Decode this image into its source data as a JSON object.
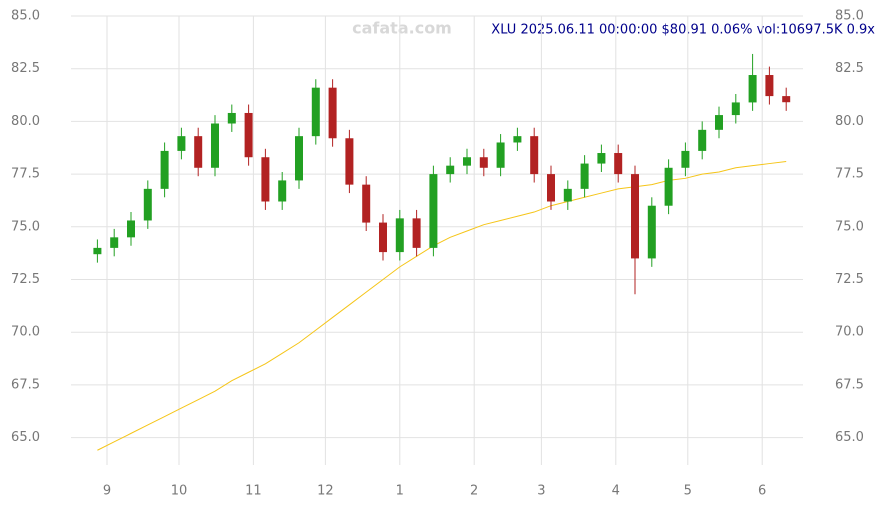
{
  "chart_data": {
    "type": "candlestick",
    "title": "XLU 2025.06.11 00:00:00 $80.91 0.06% vol:10697.5K 0.9x",
    "watermark": "cafata.com",
    "x": [
      -4,
      3,
      10,
      17,
      24,
      31,
      38,
      45,
      52,
      59,
      66,
      73,
      80,
      87,
      94,
      101,
      108,
      115,
      122,
      129,
      136,
      143,
      150,
      157,
      164,
      171,
      178,
      185,
      192,
      199,
      206,
      213,
      220,
      227,
      234,
      241,
      248,
      255,
      262,
      269,
      276,
      283
    ],
    "open": [
      73.7,
      74.0,
      74.5,
      75.3,
      76.8,
      78.6,
      79.3,
      77.8,
      79.9,
      80.4,
      78.3,
      76.2,
      77.2,
      79.3,
      81.6,
      79.2,
      77.0,
      75.2,
      73.8,
      75.4,
      74.0,
      77.5,
      77.9,
      78.3,
      77.8,
      79.0,
      79.3,
      77.5,
      76.2,
      76.8,
      78.0,
      78.5,
      77.5,
      73.5,
      76.0,
      77.8,
      78.6,
      79.6,
      80.3,
      80.9,
      82.2,
      81.2
    ],
    "high": [
      74.4,
      74.9,
      75.7,
      77.2,
      79.0,
      79.7,
      79.7,
      80.3,
      80.8,
      80.8,
      78.7,
      77.6,
      79.7,
      82.0,
      82.0,
      79.6,
      77.4,
      75.6,
      75.8,
      75.8,
      77.9,
      78.3,
      78.7,
      78.7,
      79.4,
      79.7,
      79.7,
      77.9,
      77.2,
      78.4,
      78.9,
      78.9,
      77.9,
      76.4,
      78.2,
      79.0,
      80.0,
      80.7,
      81.3,
      83.2,
      82.6,
      81.6
    ],
    "low": [
      73.3,
      73.6,
      74.1,
      74.9,
      76.4,
      78.2,
      77.4,
      77.4,
      79.5,
      77.9,
      75.8,
      75.8,
      76.8,
      78.9,
      78.8,
      76.6,
      74.8,
      73.4,
      73.4,
      73.6,
      73.6,
      77.1,
      77.5,
      77.4,
      77.4,
      78.6,
      77.1,
      75.8,
      75.8,
      76.4,
      77.6,
      77.1,
      71.8,
      73.1,
      75.6,
      77.4,
      78.2,
      79.2,
      79.9,
      80.5,
      80.8,
      80.5
    ],
    "close": [
      74.0,
      74.5,
      75.3,
      76.8,
      78.6,
      79.3,
      77.8,
      79.9,
      80.4,
      78.3,
      76.2,
      77.2,
      79.3,
      81.6,
      79.2,
      77.0,
      75.2,
      73.8,
      75.4,
      74.0,
      77.5,
      77.9,
      78.3,
      77.8,
      79.0,
      79.3,
      77.5,
      76.2,
      76.8,
      78.0,
      78.5,
      77.5,
      73.5,
      76.0,
      77.8,
      78.6,
      79.6,
      80.3,
      80.9,
      82.2,
      81.2,
      80.91
    ],
    "up_color": "#22a022",
    "down_color": "#b22222",
    "lines": [
      {
        "color": "#f5c518",
        "values": [
          64.4,
          64.8,
          65.2,
          65.6,
          66.0,
          66.4,
          66.8,
          67.2,
          67.7,
          68.1,
          68.5,
          69.0,
          69.5,
          70.1,
          70.7,
          71.3,
          71.9,
          72.5,
          73.1,
          73.6,
          74.1,
          74.5,
          74.8,
          75.1,
          75.3,
          75.5,
          75.7,
          76.0,
          76.2,
          76.4,
          76.6,
          76.8,
          76.9,
          77.0,
          77.2,
          77.3,
          77.5,
          77.6,
          77.8,
          77.9,
          78.0,
          78.1
        ]
      }
    ],
    "xlim": [
      -15,
      290
    ],
    "xticks": [
      {
        "value": 0,
        "label": "9"
      },
      {
        "value": 30,
        "label": "10"
      },
      {
        "value": 61,
        "label": "11"
      },
      {
        "value": 91,
        "label": "12"
      },
      {
        "value": 122,
        "label": "1"
      },
      {
        "value": 153,
        "label": "2"
      },
      {
        "value": 181,
        "label": "3"
      },
      {
        "value": 212,
        "label": "4"
      },
      {
        "value": 242,
        "label": "5"
      },
      {
        "value": 273,
        "label": "6"
      }
    ],
    "ylim": [
      63.7,
      85.0
    ],
    "yticks": [
      {
        "value": 65,
        "label": "65.0"
      },
      {
        "value": 67.5,
        "label": "67.5"
      },
      {
        "value": 70,
        "label": "70.0"
      },
      {
        "value": 72.5,
        "label": "72.5"
      },
      {
        "value": 75,
        "label": "75.0"
      },
      {
        "value": 77.5,
        "label": "77.5"
      },
      {
        "value": 80,
        "label": "80.0"
      },
      {
        "value": 82.5,
        "label": "82.5"
      },
      {
        "value": 85,
        "label": "85.0"
      }
    ],
    "grid": true
  }
}
